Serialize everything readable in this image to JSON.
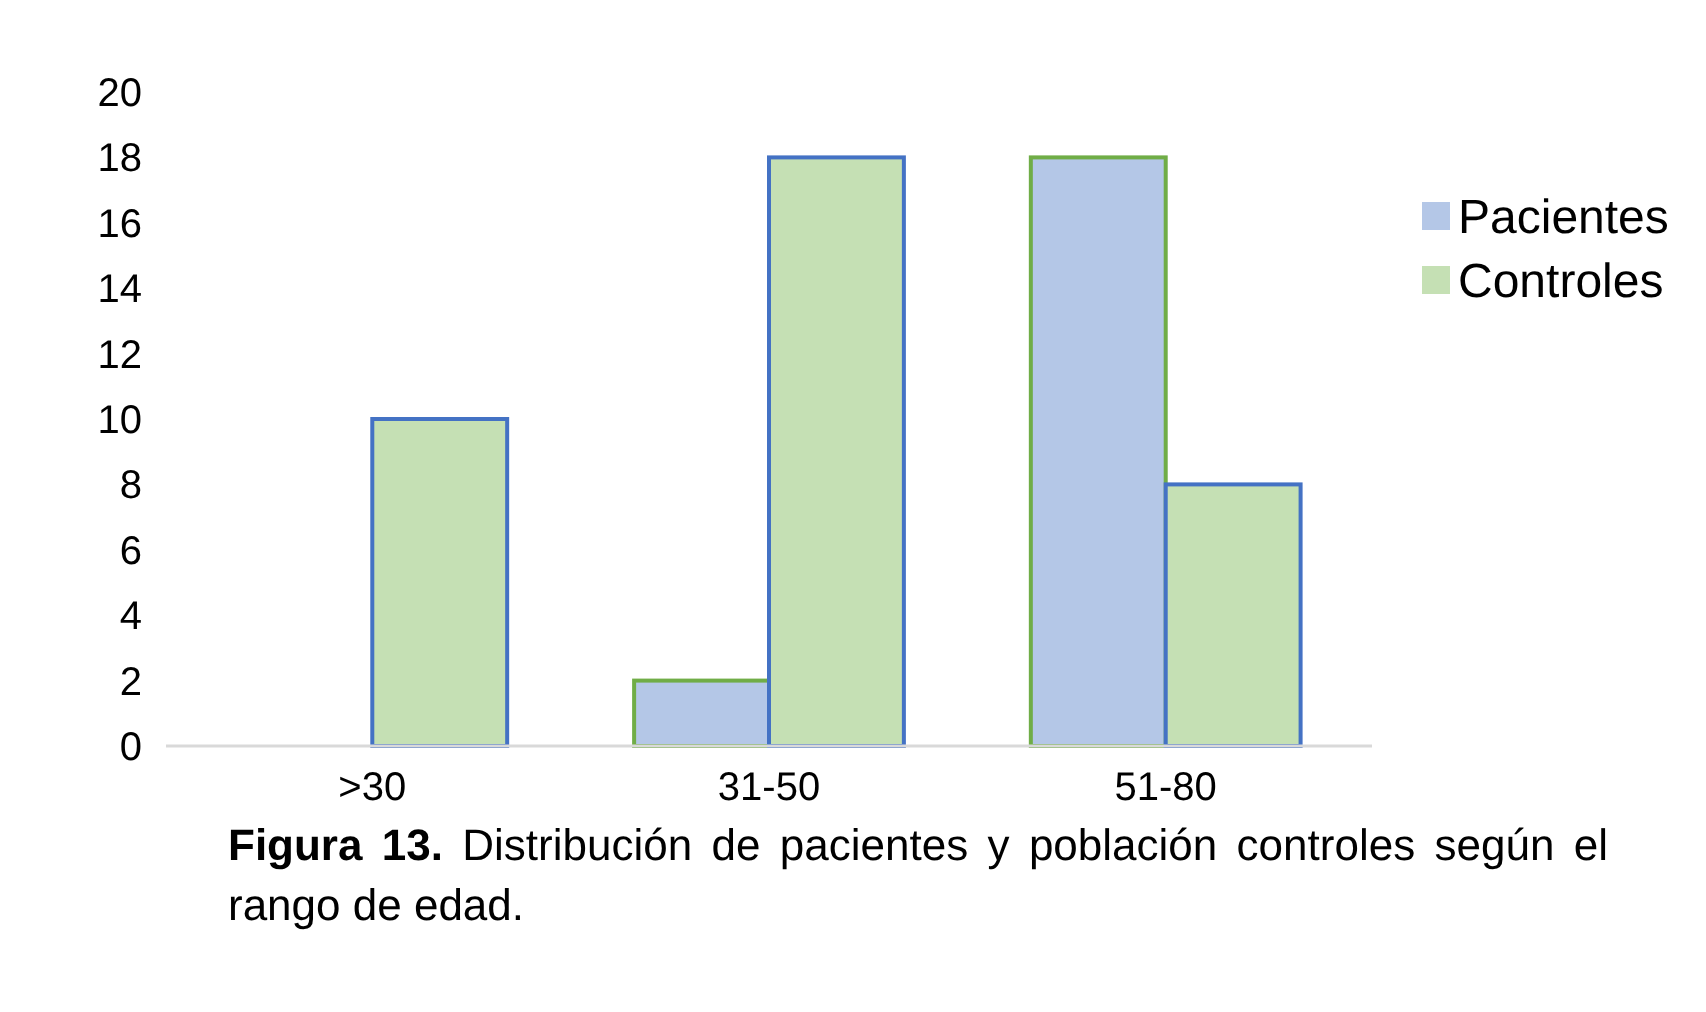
{
  "chart_data": {
    "type": "bar",
    "categories": [
      ">30",
      "31-50",
      "51-80"
    ],
    "series": [
      {
        "name": "Pacientes",
        "color": "#b4c7e7",
        "values": [
          0,
          2,
          18
        ]
      },
      {
        "name": "Controles",
        "color": "#c5e0b4",
        "values": [
          10,
          18,
          8
        ]
      }
    ],
    "ylim": [
      0,
      20
    ],
    "yticks": [
      0,
      2,
      4,
      6,
      8,
      10,
      12,
      14,
      16,
      18,
      20
    ],
    "grid": false,
    "legend": "right",
    "annotations": [
      "Figura 13. Distribución de pacientes y población controles  según el rango de edad."
    ]
  }
}
